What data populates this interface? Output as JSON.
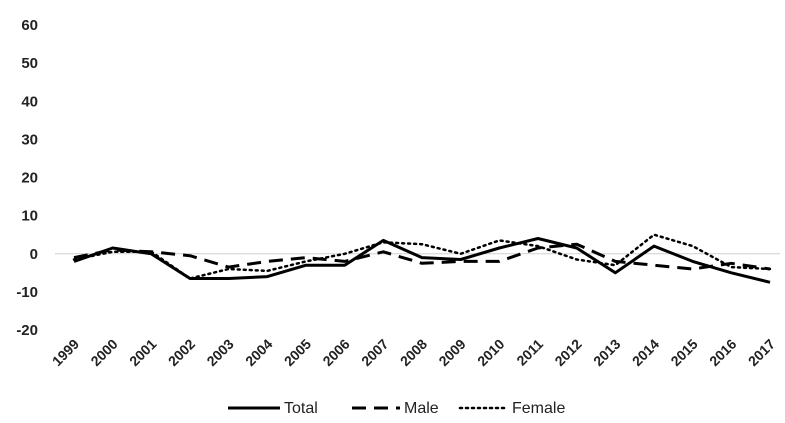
{
  "chart_data": {
    "type": "line",
    "title": "",
    "xlabel": "",
    "ylabel": "",
    "x": [
      "1999",
      "2000",
      "2001",
      "2002",
      "2003",
      "2004",
      "2005",
      "2006",
      "2007",
      "2008",
      "2009",
      "2010",
      "2011",
      "2012",
      "2013",
      "2014",
      "2015",
      "2016",
      "2017"
    ],
    "ylim": [
      -20,
      60
    ],
    "yticks": [
      60,
      50,
      40,
      30,
      20,
      10,
      0,
      -10,
      -20
    ],
    "grid": false,
    "zero_line": true,
    "legend": "bottom",
    "series": [
      {
        "name": "Total",
        "style": "solid",
        "color": "#000000",
        "values": [
          -2,
          1.5,
          0,
          -6.5,
          -6.5,
          -6,
          -3,
          -3,
          3.5,
          -1,
          -1.5,
          1.5,
          4,
          1.5,
          -5,
          2,
          -2,
          -5,
          -7.5
        ]
      },
      {
        "name": "Male",
        "style": "dashed",
        "color": "#000000",
        "values": [
          -1,
          1,
          0.5,
          -0.5,
          -3.5,
          -2,
          -1,
          -2,
          0.5,
          -2.5,
          -2,
          -2,
          1.5,
          2.5,
          -2,
          -3,
          -4,
          -2.5,
          -4
        ]
      },
      {
        "name": "Female",
        "style": "dotted",
        "color": "#000000",
        "values": [
          -1.5,
          0.5,
          0.5,
          -6.5,
          -4,
          -4.5,
          -2,
          0,
          3,
          2.5,
          0,
          3.5,
          2,
          -1.5,
          -3,
          5,
          2,
          -3.5,
          -4
        ]
      }
    ]
  }
}
